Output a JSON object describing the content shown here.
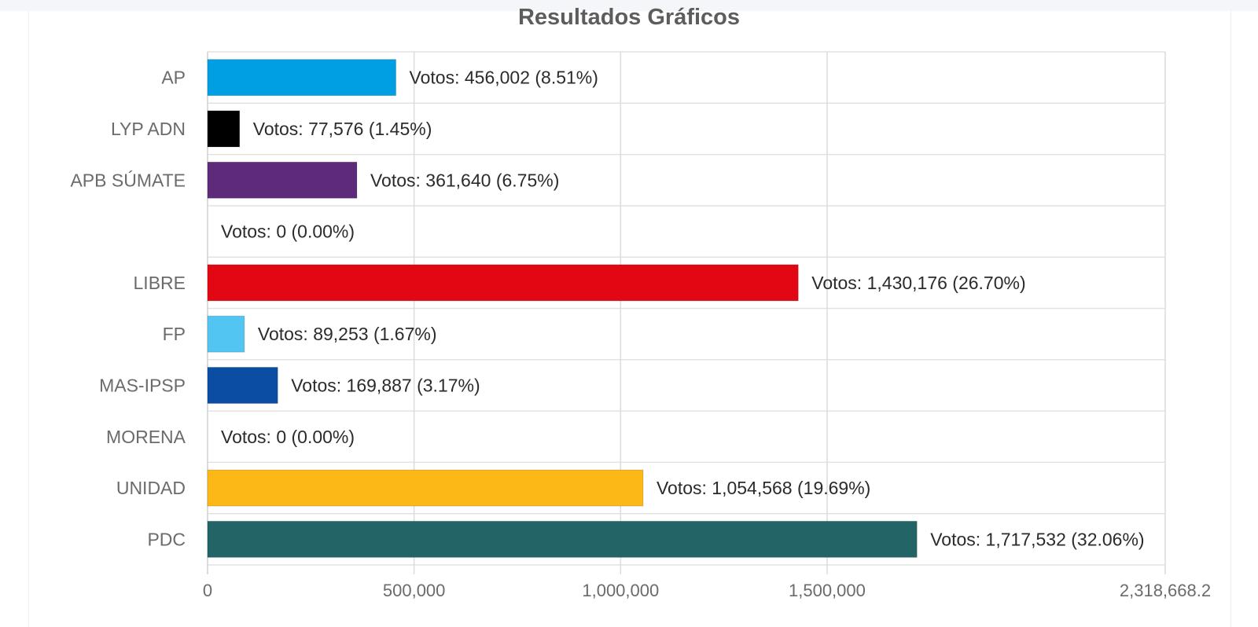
{
  "chart_data": {
    "type": "bar",
    "orientation": "horizontal",
    "title": "Resultados Gráficos",
    "categories": [
      "AP",
      "LYP ADN",
      "APB SÚMATE",
      "",
      "LIBRE",
      "FP",
      "MAS-IPSP",
      "MORENA",
      "UNIDAD",
      "PDC"
    ],
    "values": [
      456002,
      77576,
      361640,
      0,
      1430176,
      89253,
      169887,
      0,
      1054568,
      1717532
    ],
    "value_labels": [
      "Votos: 456,002 (8.51%)",
      "Votos: 77,576 (1.45%)",
      "Votos: 361,640 (6.75%)",
      "Votos: 0 (0.00%)",
      "Votos: 1,430,176 (26.70%)",
      "Votos: 89,253 (1.67%)",
      "Votos: 169,887 (3.17%)",
      "Votos: 0 (0.00%)",
      "Votos: 1,054,568 (19.69%)",
      "Votos: 1,717,532 (32.06%)"
    ],
    "colors": [
      "#009fe3",
      "#000000",
      "#5e2a7a",
      "#cccccc",
      "#e30613",
      "#52c5f2",
      "#0a4da2",
      "#8b1a1a",
      "#fbb817",
      "#236466"
    ],
    "xlim": [
      0,
      2318668.2
    ],
    "xticks": [
      0,
      500000,
      1000000,
      1500000,
      2318668.2
    ],
    "xtick_labels": [
      "0",
      "500,000",
      "1,000,000",
      "1,500,000",
      "2,318,668.2"
    ],
    "grid": true,
    "legend": "none"
  }
}
